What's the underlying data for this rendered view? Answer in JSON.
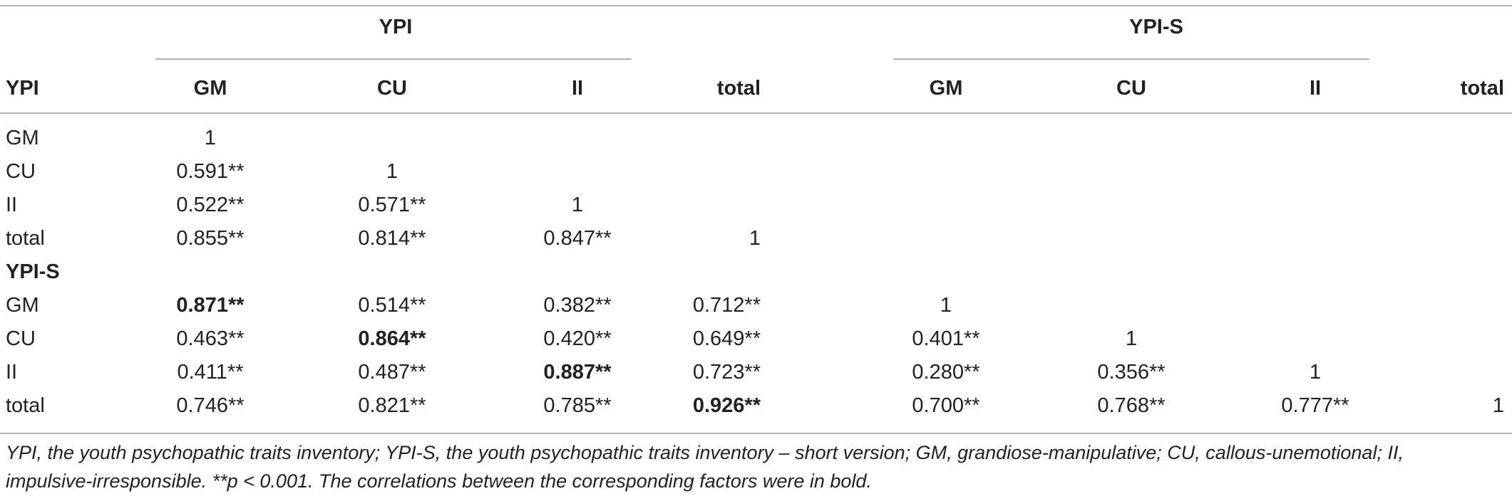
{
  "table": {
    "group_headers": [
      "YPI",
      "YPI-S"
    ],
    "corner_label": "YPI",
    "columns": [
      "GM",
      "CU",
      "II",
      "total",
      "GM",
      "CU",
      "II",
      "total"
    ],
    "sections": [
      {
        "label": "",
        "rows": [
          {
            "label": "GM",
            "cells": [
              {
                "v": "1"
              }
            ]
          },
          {
            "label": "CU",
            "cells": [
              {
                "v": "0.591**"
              },
              {
                "v": "1"
              }
            ]
          },
          {
            "label": "II",
            "cells": [
              {
                "v": "0.522**"
              },
              {
                "v": "0.571**"
              },
              {
                "v": "1"
              }
            ]
          },
          {
            "label": "total",
            "cells": [
              {
                "v": "0.855**"
              },
              {
                "v": "0.814**"
              },
              {
                "v": "0.847**"
              },
              {
                "v": "1"
              }
            ]
          }
        ]
      },
      {
        "label": "YPI-S",
        "rows": [
          {
            "label": "GM",
            "cells": [
              {
                "v": "0.871**",
                "bold": true
              },
              {
                "v": "0.514**"
              },
              {
                "v": "0.382**"
              },
              {
                "v": "0.712**"
              },
              {
                "v": "1"
              }
            ]
          },
          {
            "label": "CU",
            "cells": [
              {
                "v": "0.463**"
              },
              {
                "v": "0.864**",
                "bold": true
              },
              {
                "v": "0.420**"
              },
              {
                "v": "0.649**"
              },
              {
                "v": "0.401**"
              },
              {
                "v": "1"
              }
            ]
          },
          {
            "label": "II",
            "cells": [
              {
                "v": "0.411**"
              },
              {
                "v": "0.487**"
              },
              {
                "v": "0.887**",
                "bold": true
              },
              {
                "v": "0.723**"
              },
              {
                "v": "0.280**"
              },
              {
                "v": "0.356**"
              },
              {
                "v": "1"
              }
            ]
          },
          {
            "label": "total",
            "cells": [
              {
                "v": "0.746**"
              },
              {
                "v": "0.821**"
              },
              {
                "v": "0.785**"
              },
              {
                "v": "0.926**",
                "bold": true
              },
              {
                "v": "0.700**"
              },
              {
                "v": "0.768**"
              },
              {
                "v": "0.777**"
              },
              {
                "v": "1"
              }
            ]
          }
        ]
      }
    ],
    "footnote_line1": "YPI, the youth psychopathic traits inventory; YPI-S, the youth psychopathic traits inventory – short version; GM, grandiose-manipulative; CU, callous-unemotional; II,",
    "footnote_line2": "impulsive-irresponsible. **p < 0.001. The correlations between the corresponding factors were in bold."
  }
}
